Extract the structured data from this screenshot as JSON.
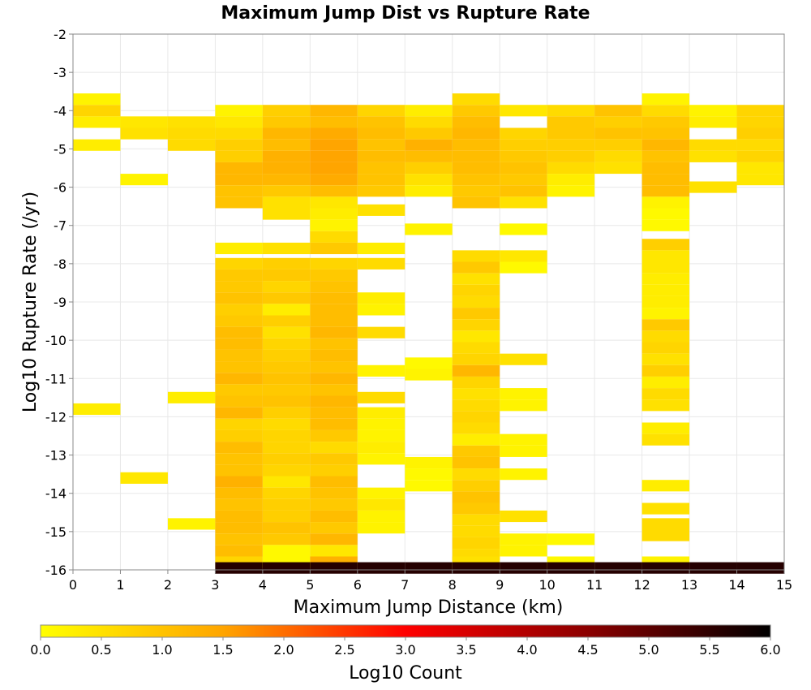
{
  "chart_data": {
    "type": "heatmap",
    "title": "Maximum Jump Dist vs Rupture Rate",
    "xlabel": "Maximum Jump Distance (km)",
    "ylabel": "Log10 Rupture Rate (/yr)",
    "xlim": [
      0,
      15
    ],
    "ylim": [
      -16,
      -2
    ],
    "x_ticks": [
      "0",
      "1",
      "2",
      "3",
      "4",
      "5",
      "6",
      "7",
      "8",
      "9",
      "10",
      "11",
      "12",
      "13",
      "14",
      "15"
    ],
    "y_ticks": [
      "-2",
      "-3",
      "-4",
      "-5",
      "-6",
      "-7",
      "-8",
      "-9",
      "-10",
      "-11",
      "-12",
      "-13",
      "-14",
      "-15",
      "-16"
    ],
    "bin_width_x": 1,
    "bin_height_y": 0.3,
    "grid": true,
    "colorbar": {
      "label": "Log10 Count",
      "range": [
        0,
        6
      ],
      "ticks": [
        "0.0",
        "0.5",
        "1.0",
        "1.5",
        "2.0",
        "2.5",
        "3.0",
        "3.5",
        "4.0",
        "4.5",
        "5.0",
        "5.5",
        "6.0"
      ],
      "colors": [
        "#ffff00",
        "#ffa500",
        "#ff0000",
        "#000000"
      ]
    },
    "columns": [
      {
        "x": 0.5,
        "bins": [
          [
            -3.7,
            0.2
          ],
          [
            -4.0,
            0.7
          ],
          [
            -4.3,
            0.3
          ],
          [
            -4.9,
            0.3
          ],
          [
            -11.8,
            0.3
          ]
        ]
      },
      {
        "x": 1.5,
        "bins": [
          [
            -4.3,
            0.4
          ],
          [
            -4.6,
            0.5
          ],
          [
            -5.8,
            0.2
          ],
          [
            -13.6,
            0.4
          ]
        ]
      },
      {
        "x": 2.5,
        "bins": [
          [
            -4.3,
            0.5
          ],
          [
            -4.6,
            0.6
          ],
          [
            -4.9,
            0.6
          ],
          [
            -11.5,
            0.3
          ],
          [
            -14.8,
            0.2
          ]
        ]
      },
      {
        "x": 3.5,
        "bins": [
          [
            -4.0,
            0.2
          ],
          [
            -4.3,
            0.4
          ],
          [
            -4.6,
            0.6
          ],
          [
            -4.9,
            0.8
          ],
          [
            -5.2,
            0.8
          ],
          [
            -5.5,
            1.2
          ],
          [
            -5.8,
            1.2
          ],
          [
            -6.1,
            1.0
          ],
          [
            -6.4,
            1.0
          ],
          [
            -7.6,
            0.3
          ],
          [
            -8.0,
            0.7
          ],
          [
            -8.3,
            0.9
          ],
          [
            -8.6,
            0.9
          ],
          [
            -8.9,
            1.0
          ],
          [
            -9.2,
            0.8
          ],
          [
            -9.5,
            0.9
          ],
          [
            -9.8,
            1.1
          ],
          [
            -10.1,
            1.1
          ],
          [
            -10.4,
            1.0
          ],
          [
            -10.7,
            1.0
          ],
          [
            -11.0,
            1.2
          ],
          [
            -11.3,
            0.9
          ],
          [
            -11.6,
            1.0
          ],
          [
            -11.9,
            1.2
          ],
          [
            -12.2,
            0.7
          ],
          [
            -12.5,
            0.8
          ],
          [
            -12.8,
            1.1
          ],
          [
            -13.1,
            1.0
          ],
          [
            -13.4,
            1.0
          ],
          [
            -13.7,
            1.3
          ],
          [
            -14.0,
            1.1
          ],
          [
            -14.3,
            1.0
          ],
          [
            -14.6,
            1.1
          ],
          [
            -14.9,
            1.1
          ],
          [
            -15.2,
            1.0
          ],
          [
            -15.5,
            1.1
          ],
          [
            -15.8,
            0.7
          ],
          [
            -15.95,
            5.6
          ]
        ]
      },
      {
        "x": 4.5,
        "bins": [
          [
            -4.0,
            0.8
          ],
          [
            -4.3,
            0.9
          ],
          [
            -4.6,
            1.2
          ],
          [
            -4.9,
            1.1
          ],
          [
            -5.2,
            1.3
          ],
          [
            -5.5,
            1.3
          ],
          [
            -5.8,
            1.2
          ],
          [
            -6.1,
            0.9
          ],
          [
            -6.4,
            0.5
          ],
          [
            -6.7,
            0.5
          ],
          [
            -7.6,
            0.5
          ],
          [
            -8.0,
            0.8
          ],
          [
            -8.3,
            0.9
          ],
          [
            -8.6,
            0.7
          ],
          [
            -8.9,
            0.9
          ],
          [
            -9.2,
            0.3
          ],
          [
            -9.5,
            0.8
          ],
          [
            -9.8,
            0.5
          ],
          [
            -10.1,
            0.7
          ],
          [
            -10.4,
            0.8
          ],
          [
            -10.7,
            0.9
          ],
          [
            -11.0,
            1.0
          ],
          [
            -11.3,
            0.9
          ],
          [
            -11.6,
            1.0
          ],
          [
            -11.9,
            0.8
          ],
          [
            -12.2,
            0.6
          ],
          [
            -12.5,
            0.7
          ],
          [
            -12.8,
            0.7
          ],
          [
            -13.1,
            0.8
          ],
          [
            -13.4,
            0.7
          ],
          [
            -13.7,
            0.4
          ],
          [
            -14.0,
            0.7
          ],
          [
            -14.3,
            0.8
          ],
          [
            -14.6,
            0.8
          ],
          [
            -14.9,
            1.0
          ],
          [
            -15.2,
            0.9
          ],
          [
            -15.5,
            0.1
          ],
          [
            -15.8,
            0.1
          ],
          [
            -15.95,
            5.6
          ]
        ]
      },
      {
        "x": 5.5,
        "bins": [
          [
            -4.0,
            1.2
          ],
          [
            -4.3,
            1.1
          ],
          [
            -4.6,
            1.4
          ],
          [
            -4.9,
            1.5
          ],
          [
            -5.2,
            1.5
          ],
          [
            -5.5,
            1.5
          ],
          [
            -5.8,
            1.4
          ],
          [
            -6.1,
            1.1
          ],
          [
            -6.4,
            0.4
          ],
          [
            -6.7,
            0.3
          ],
          [
            -7.0,
            0.2
          ],
          [
            -7.3,
            0.6
          ],
          [
            -7.6,
            0.9
          ],
          [
            -8.0,
            0.7
          ],
          [
            -8.3,
            0.9
          ],
          [
            -8.6,
            1.0
          ],
          [
            -8.9,
            1.1
          ],
          [
            -9.2,
            1.1
          ],
          [
            -9.5,
            1.1
          ],
          [
            -9.8,
            1.2
          ],
          [
            -10.1,
            1.0
          ],
          [
            -10.4,
            1.1
          ],
          [
            -10.7,
            1.0
          ],
          [
            -11.0,
            1.2
          ],
          [
            -11.3,
            1.0
          ],
          [
            -11.6,
            1.2
          ],
          [
            -11.9,
            1.1
          ],
          [
            -12.2,
            1.1
          ],
          [
            -12.5,
            0.9
          ],
          [
            -12.8,
            0.6
          ],
          [
            -13.1,
            0.9
          ],
          [
            -13.4,
            0.8
          ],
          [
            -13.7,
            1.1
          ],
          [
            -14.0,
            1.0
          ],
          [
            -14.3,
            0.9
          ],
          [
            -14.6,
            1.1
          ],
          [
            -14.9,
            0.9
          ],
          [
            -15.2,
            1.2
          ],
          [
            -15.5,
            0.4
          ],
          [
            -15.8,
            1.3
          ],
          [
            -15.95,
            5.6
          ]
        ]
      },
      {
        "x": 6.5,
        "bins": [
          [
            -4.0,
            0.7
          ],
          [
            -4.3,
            1.0
          ],
          [
            -4.6,
            1.1
          ],
          [
            -4.9,
            1.0
          ],
          [
            -5.2,
            1.1
          ],
          [
            -5.5,
            1.0
          ],
          [
            -5.8,
            1.0
          ],
          [
            -6.1,
            0.9
          ],
          [
            -6.6,
            0.5
          ],
          [
            -7.6,
            0.3
          ],
          [
            -8.0,
            0.6
          ],
          [
            -8.9,
            0.3
          ],
          [
            -9.2,
            0.2
          ],
          [
            -9.8,
            0.6
          ],
          [
            -10.8,
            0.2
          ],
          [
            -11.5,
            0.6
          ],
          [
            -11.9,
            0.3
          ],
          [
            -12.2,
            0.2
          ],
          [
            -12.5,
            0.2
          ],
          [
            -12.8,
            0.3
          ],
          [
            -13.1,
            0.2
          ],
          [
            -14.0,
            0.2
          ],
          [
            -14.3,
            0.4
          ],
          [
            -14.6,
            0.2
          ],
          [
            -14.9,
            0.2
          ],
          [
            -15.95,
            5.6
          ]
        ]
      },
      {
        "x": 7.5,
        "bins": [
          [
            -4.0,
            0.3
          ],
          [
            -4.3,
            0.6
          ],
          [
            -4.6,
            0.9
          ],
          [
            -4.9,
            1.3
          ],
          [
            -5.2,
            1.1
          ],
          [
            -5.5,
            0.8
          ],
          [
            -5.8,
            0.5
          ],
          [
            -6.1,
            0.3
          ],
          [
            -7.1,
            0.2
          ],
          [
            -10.6,
            0.1
          ],
          [
            -10.9,
            0.2
          ],
          [
            -13.2,
            0.2
          ],
          [
            -13.5,
            0.1
          ],
          [
            -13.8,
            0.1
          ],
          [
            -15.95,
            5.6
          ]
        ]
      },
      {
        "x": 8.5,
        "bins": [
          [
            -3.7,
            0.6
          ],
          [
            -4.0,
            0.9
          ],
          [
            -4.3,
            1.1
          ],
          [
            -4.6,
            1.2
          ],
          [
            -4.9,
            1.1
          ],
          [
            -5.2,
            1.1
          ],
          [
            -5.5,
            1.1
          ],
          [
            -5.8,
            1.0
          ],
          [
            -6.1,
            0.9
          ],
          [
            -6.4,
            1.0
          ],
          [
            -7.8,
            0.6
          ],
          [
            -8.1,
            0.9
          ],
          [
            -8.4,
            0.5
          ],
          [
            -8.7,
            0.7
          ],
          [
            -9.0,
            0.6
          ],
          [
            -9.3,
            0.9
          ],
          [
            -9.6,
            0.7
          ],
          [
            -9.9,
            0.4
          ],
          [
            -10.2,
            0.6
          ],
          [
            -10.5,
            0.7
          ],
          [
            -10.8,
            1.2
          ],
          [
            -11.1,
            0.7
          ],
          [
            -11.4,
            0.5
          ],
          [
            -11.7,
            0.6
          ],
          [
            -12.0,
            0.7
          ],
          [
            -12.3,
            0.6
          ],
          [
            -12.6,
            0.3
          ],
          [
            -12.9,
            0.9
          ],
          [
            -13.2,
            1.0
          ],
          [
            -13.5,
            0.6
          ],
          [
            -13.8,
            0.8
          ],
          [
            -14.1,
            1.0
          ],
          [
            -14.4,
            0.9
          ],
          [
            -14.7,
            0.6
          ],
          [
            -15.0,
            0.6
          ],
          [
            -15.3,
            0.7
          ],
          [
            -15.6,
            0.6
          ],
          [
            -15.8,
            0.5
          ],
          [
            -15.95,
            5.6
          ]
        ]
      },
      {
        "x": 9.5,
        "bins": [
          [
            -4.0,
            0.4
          ],
          [
            -4.6,
            0.7
          ],
          [
            -4.9,
            0.8
          ],
          [
            -5.2,
            0.9
          ],
          [
            -5.5,
            1.0
          ],
          [
            -5.8,
            0.9
          ],
          [
            -6.1,
            1.0
          ],
          [
            -6.4,
            0.5
          ],
          [
            -7.1,
            0.1
          ],
          [
            -7.8,
            0.4
          ],
          [
            -8.1,
            0.1
          ],
          [
            -10.5,
            0.5
          ],
          [
            -11.4,
            0.2
          ],
          [
            -11.7,
            0.2
          ],
          [
            -12.6,
            0.2
          ],
          [
            -12.9,
            0.2
          ],
          [
            -13.5,
            0.2
          ],
          [
            -14.6,
            0.5
          ],
          [
            -15.2,
            0.2
          ],
          [
            -15.5,
            0.2
          ],
          [
            -15.95,
            5.6
          ]
        ]
      },
      {
        "x": 10.5,
        "bins": [
          [
            -4.0,
            0.6
          ],
          [
            -4.3,
            0.9
          ],
          [
            -4.6,
            0.9
          ],
          [
            -4.9,
            0.8
          ],
          [
            -5.2,
            0.8
          ],
          [
            -5.5,
            0.6
          ],
          [
            -5.8,
            0.3
          ],
          [
            -6.1,
            0.2
          ],
          [
            -15.2,
            0.1
          ],
          [
            -15.8,
            0.1
          ],
          [
            -15.95,
            5.6
          ]
        ]
      },
      {
        "x": 11.5,
        "bins": [
          [
            -4.0,
            1.0
          ],
          [
            -4.3,
            0.8
          ],
          [
            -4.6,
            1.0
          ],
          [
            -4.9,
            0.8
          ],
          [
            -5.2,
            0.6
          ],
          [
            -5.5,
            0.5
          ],
          [
            -15.95,
            5.6
          ]
        ]
      },
      {
        "x": 12.5,
        "bins": [
          [
            -3.7,
            0.2
          ],
          [
            -4.0,
            0.6
          ],
          [
            -4.3,
            0.9
          ],
          [
            -4.6,
            1.0
          ],
          [
            -4.9,
            1.2
          ],
          [
            -5.2,
            1.0
          ],
          [
            -5.5,
            1.1
          ],
          [
            -5.8,
            1.1
          ],
          [
            -6.1,
            1.1
          ],
          [
            -6.4,
            0.2
          ],
          [
            -6.7,
            0.1
          ],
          [
            -7.0,
            0.1
          ],
          [
            -7.5,
            0.8
          ],
          [
            -7.8,
            0.4
          ],
          [
            -8.1,
            0.4
          ],
          [
            -8.4,
            0.3
          ],
          [
            -8.7,
            0.3
          ],
          [
            -9.0,
            0.3
          ],
          [
            -9.3,
            0.2
          ],
          [
            -9.6,
            0.9
          ],
          [
            -9.9,
            0.6
          ],
          [
            -10.2,
            0.7
          ],
          [
            -10.5,
            0.5
          ],
          [
            -10.8,
            0.8
          ],
          [
            -11.1,
            0.3
          ],
          [
            -11.4,
            0.6
          ],
          [
            -11.7,
            0.5
          ],
          [
            -12.3,
            0.3
          ],
          [
            -12.6,
            0.5
          ],
          [
            -13.8,
            0.3
          ],
          [
            -14.4,
            0.5
          ],
          [
            -14.8,
            0.6
          ],
          [
            -15.1,
            0.6
          ],
          [
            -15.8,
            0.2
          ],
          [
            -15.95,
            5.6
          ]
        ]
      },
      {
        "x": 13.5,
        "bins": [
          [
            -4.0,
            0.2
          ],
          [
            -4.3,
            0.3
          ],
          [
            -4.9,
            0.6
          ],
          [
            -5.2,
            0.5
          ],
          [
            -6.0,
            0.5
          ],
          [
            -15.95,
            5.6
          ]
        ]
      },
      {
        "x": 14.5,
        "bins": [
          [
            -4.0,
            0.7
          ],
          [
            -4.3,
            0.7
          ],
          [
            -4.6,
            0.8
          ],
          [
            -4.9,
            0.6
          ],
          [
            -5.2,
            0.7
          ],
          [
            -5.5,
            0.4
          ],
          [
            -5.8,
            0.4
          ],
          [
            -15.95,
            5.6
          ]
        ]
      }
    ]
  }
}
